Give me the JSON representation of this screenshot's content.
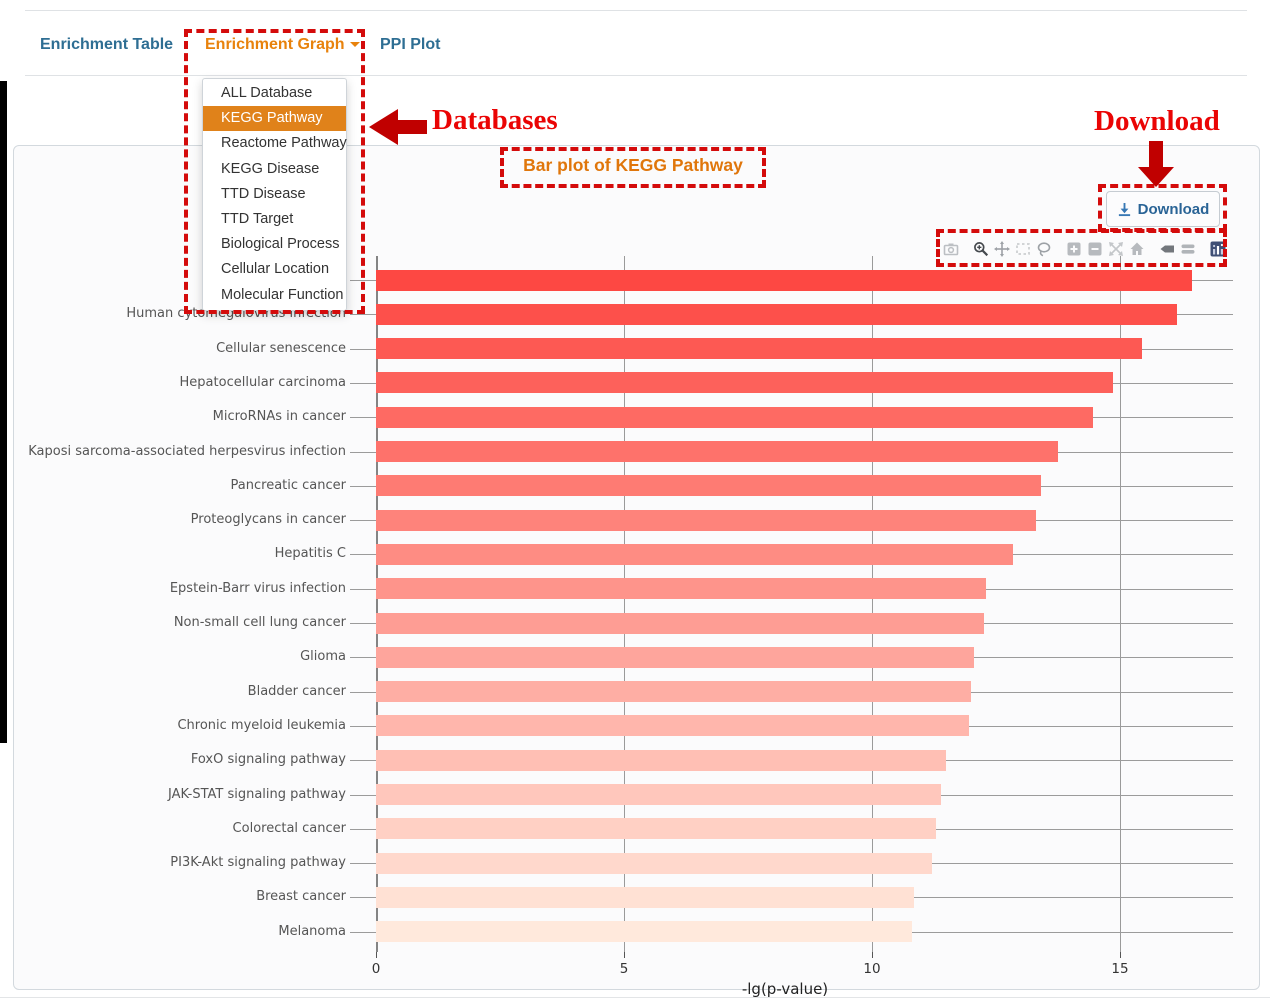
{
  "nav": {
    "tabs": [
      {
        "label": "Enrichment Table"
      },
      {
        "label": "Enrichment Graph",
        "has_caret": true
      },
      {
        "label": "PPI Plot"
      }
    ]
  },
  "dropdown": {
    "items": [
      "ALL Database",
      "KEGG Pathway",
      "Reactome Pathway",
      "KEGG Disease",
      "TTD Disease",
      "TTD Target",
      "Biological Process",
      "Cellular Location",
      "Molecular Function"
    ],
    "selected": "KEGG Pathway",
    "selected_index": 1,
    "highlight_color": "#e0821a"
  },
  "annotations": {
    "databases_label": "Databases",
    "download_label": "Download",
    "text_color": "#ea0404",
    "arrow_color": "#c00000",
    "dash_color": "#d40b0b"
  },
  "panel": {
    "title": "Bar plot of KEGG Pathway",
    "title_color": "#e0760b",
    "download_button_label": "Download"
  },
  "toolbar": {
    "icons": [
      {
        "name": "camera-icon",
        "color": "#bcbfc3",
        "group_end": true
      },
      {
        "name": "zoom-icon",
        "color": "#45494e"
      },
      {
        "name": "pan-icon",
        "color": "#9da1a6"
      },
      {
        "name": "box-select-icon",
        "color": "#c4c7ca"
      },
      {
        "name": "lasso-icon",
        "color": "#9da1a6",
        "group_end": true
      },
      {
        "name": "zoom-in-icon",
        "color": "#b7babe"
      },
      {
        "name": "zoom-out-icon",
        "color": "#b7babe"
      },
      {
        "name": "autoscale-icon",
        "color": "#c4c7ca"
      },
      {
        "name": "home-icon",
        "color": "#b7babe",
        "group_end": true
      },
      {
        "name": "hover-closest-icon",
        "color": "#73777c"
      },
      {
        "name": "hover-compare-icon",
        "color": "#b0b4b8",
        "group_end": true
      },
      {
        "name": "plotly-logo-icon",
        "color": "#3f4f75"
      }
    ]
  },
  "chart_data": {
    "type": "bar",
    "orientation": "horizontal",
    "title": "Bar plot of KEGG Pathway",
    "xlabel": "-lg(p-value)",
    "ylabel": "",
    "xticks": [
      "0",
      "5",
      "10",
      "15"
    ],
    "xtick_values": [
      0,
      5,
      10,
      15
    ],
    "xlim": [
      0,
      17.3
    ],
    "grid": true,
    "first_label_hidden_by_dropdown": true,
    "categories": [
      "",
      "Human cytomegalovirus infection",
      "Cellular senescence",
      "Hepatocellular carcinoma",
      "MicroRNAs in cancer",
      "Kaposi sarcoma-associated herpesvirus infection",
      "Pancreatic cancer",
      "Proteoglycans in cancer",
      "Hepatitis C",
      "Epstein-Barr virus infection",
      "Non-small cell lung cancer",
      "Glioma",
      "Bladder cancer",
      "Chronic myeloid leukemia",
      "FoxO signaling pathway",
      "JAK-STAT signaling pathway",
      "Colorectal cancer",
      "PI3K-Akt signaling pathway",
      "Breast cancer",
      "Melanoma"
    ],
    "values": [
      16.45,
      16.15,
      15.45,
      14.85,
      14.45,
      13.75,
      13.4,
      13.3,
      12.85,
      12.3,
      12.25,
      12.05,
      12.0,
      11.95,
      11.5,
      11.4,
      11.3,
      11.2,
      10.85,
      10.8
    ],
    "bar_colors": [
      "#fd4843",
      "#fd504b",
      "#fd5953",
      "#fd615b",
      "#fe6a63",
      "#fe726b",
      "#fe7b73",
      "#fe837b",
      "#fe8c83",
      "#fe948b",
      "#fe9d94",
      "#fea59c",
      "#feaea4",
      "#ffb6ac",
      "#ffbfb4",
      "#ffc7bc",
      "#ffd0c4",
      "#ffd8cc",
      "#ffe1d4",
      "#ffe9dc"
    ]
  }
}
